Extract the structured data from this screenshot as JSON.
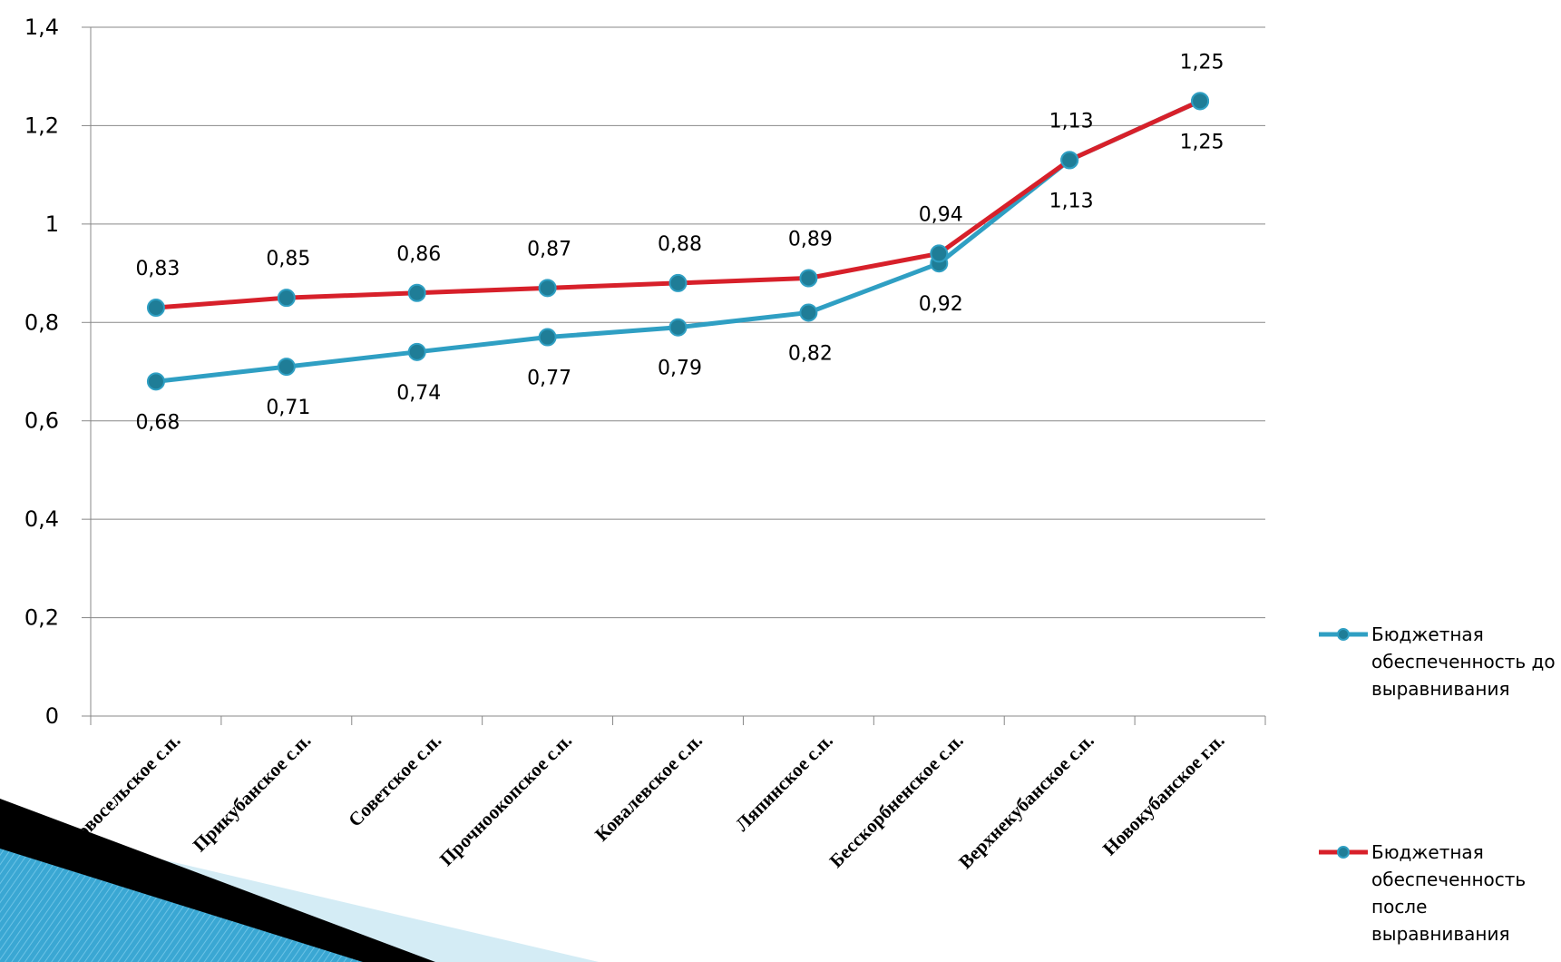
{
  "chart_data": {
    "type": "line",
    "categories": [
      "Новосельское с.п.",
      "Прикубанское с.п.",
      "Советское с.п.",
      "Прочноокопское с.п.",
      "Ковалевское с.п.",
      "Ляпинское с.п.",
      "Бесскорбненское с.п.",
      "Верхнекубанское с.п.",
      "Новокубанское г.п."
    ],
    "series": [
      {
        "name": "Бюджетная обеспеченность до выравнивания",
        "color": "#2f9fc3",
        "values": [
          0.68,
          0.71,
          0.74,
          0.77,
          0.79,
          0.82,
          0.92,
          1.13,
          1.25
        ],
        "value_labels": [
          "0,68",
          "0,71",
          "0,74",
          "0,77",
          "0,79",
          "0,82",
          "0,92",
          "1,13",
          "1,25"
        ]
      },
      {
        "name": "Бюджетная обеспеченность после выравнивания",
        "color": "#d7202a",
        "values": [
          0.83,
          0.85,
          0.86,
          0.87,
          0.88,
          0.89,
          0.94,
          1.13,
          1.25
        ],
        "value_labels": [
          "0,83",
          "0,85",
          "0,86",
          "0,87",
          "0,88",
          "0,89",
          "0,94",
          "1,13",
          "1,25"
        ]
      }
    ],
    "ylim": [
      0,
      1.4
    ],
    "yticks": [
      0,
      {
        "value": 0.2,
        "label": "0,2"
      },
      {
        "value": 0.4,
        "label": "0,4"
      },
      {
        "value": 0.6,
        "label": "0,6"
      },
      {
        "value": 0.8,
        "label": "0,8"
      },
      1,
      {
        "value": 1.2,
        "label": "1,2"
      },
      {
        "value": 1.4,
        "label": "1,4"
      }
    ],
    "grid": true,
    "legend": "right"
  }
}
